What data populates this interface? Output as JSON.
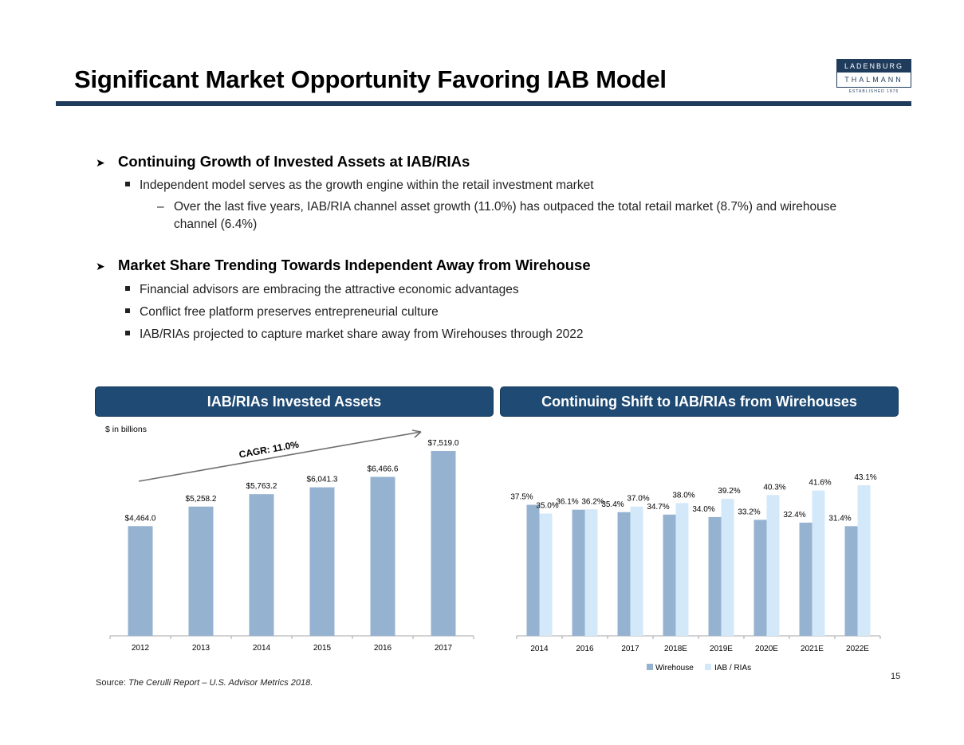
{
  "page": {
    "title": "Significant Market Opportunity Favoring IAB Model",
    "logo": {
      "line1": "LADENBURG",
      "line2": "THALMANN",
      "line3": "ESTABLISHED 1876"
    },
    "section1": {
      "heading": "Continuing Growth of Invested Assets at IAB/RIAs",
      "bullet": "Independent model serves as the growth engine within the retail investment market",
      "sub_bullet": "Over the last five years, IAB/RIA channel asset growth (11.0%) has outpaced the total retail market (8.7%) and wirehouse channel (6.4%)"
    },
    "section2": {
      "heading": "Market Share Trending Towards Independent Away from Wirehouse",
      "bullets": [
        "Financial advisors are embracing the attractive economic advantages",
        "Conflict free platform preserves entrepreneurial culture",
        "IAB/RIAs projected to capture market share away from Wirehouses through 2022"
      ]
    },
    "source_label": "Source:",
    "source_text": "The Cerulli Report – U.S. Advisor Metrics 2018.",
    "page_number": "15"
  },
  "colors": {
    "navy": "#1f3c5c",
    "panel": "#1f4a73",
    "bar": "#95b3d0",
    "bar_light": "#d3e8f9"
  },
  "chart_data": [
    {
      "type": "bar",
      "title": "IAB/RIAs Invested Assets",
      "unit_label": "$ in billions",
      "annotation": "CAGR: 11.0%",
      "categories": [
        "2012",
        "2013",
        "2014",
        "2015",
        "2016",
        "2017"
      ],
      "values": [
        4464.0,
        5258.2,
        5763.2,
        6041.3,
        6466.6,
        7519.0
      ],
      "labels": [
        "$4,464.0",
        "$5,258.2",
        "$5,763.2",
        "$6,041.3",
        "$6,466.6",
        "$7,519.0"
      ],
      "ylim": [
        0,
        7519.0
      ]
    },
    {
      "type": "bar",
      "title": "Continuing Shift to IAB/RIAs from Wirehouses",
      "categories": [
        "2014",
        "2016",
        "2017",
        "2018E",
        "2019E",
        "2020E",
        "2021E",
        "2022E"
      ],
      "series": [
        {
          "name": "Wirehouse",
          "values": [
            37.5,
            36.1,
            35.4,
            34.7,
            34.0,
            33.2,
            32.4,
            31.4
          ],
          "labels": [
            "37.5%",
            "36.1%",
            "35.4%",
            "34.7%",
            "34.0%",
            "33.2%",
            "32.4%",
            "31.4%"
          ]
        },
        {
          "name": "IAB / RIAs",
          "values": [
            35.0,
            36.2,
            37.0,
            38.0,
            39.2,
            40.3,
            41.6,
            43.1
          ],
          "labels": [
            "35.0%",
            "36.2%",
            "37.0%",
            "38.0%",
            "39.2%",
            "40.3%",
            "41.6%",
            "43.1%"
          ]
        }
      ],
      "ylim": [
        0,
        43.1
      ],
      "legend": "bottom"
    }
  ]
}
